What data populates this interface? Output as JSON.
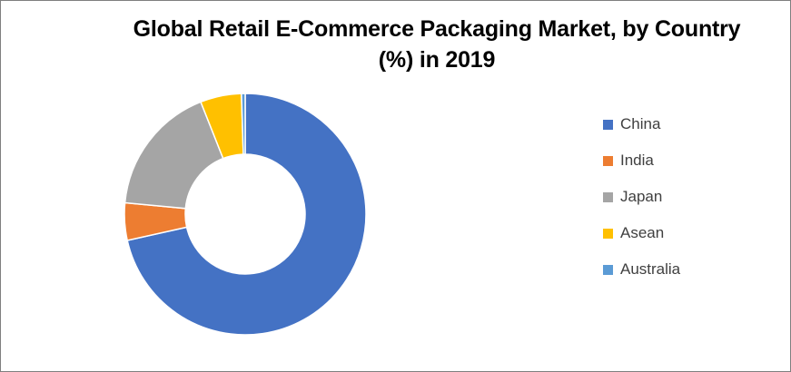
{
  "chart_data": {
    "type": "pie",
    "title": "Global Retail E-Commerce Packaging Market, by Country",
    "subtitle": "(%) in 2019",
    "donut": true,
    "legend_position": "right",
    "categories": [
      "China",
      "India",
      "Japan",
      "Asean",
      "Australia"
    ],
    "values": [
      71.5,
      5.0,
      17.5,
      5.5,
      0.5
    ],
    "colors": [
      "#4472C4",
      "#ED7D31",
      "#A5A5A5",
      "#FFC000",
      "#5B9BD5"
    ]
  }
}
